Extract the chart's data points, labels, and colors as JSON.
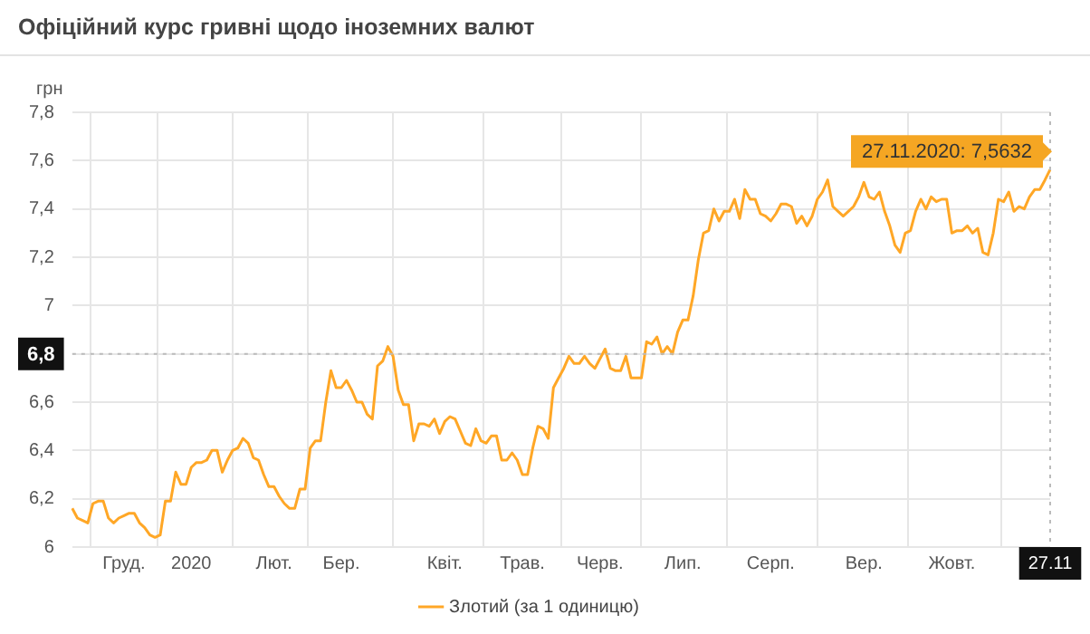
{
  "chart_data": {
    "type": "line",
    "title": "Офіційний курс гривні щодо іноземних валют",
    "ylabel": "грн",
    "categories": [
      null,
      null,
      null,
      null,
      null,
      null,
      null,
      null,
      null,
      null,
      "Груд.",
      null,
      null,
      null,
      null,
      null,
      null,
      null,
      null,
      null,
      null,
      null,
      null,
      "2020",
      null,
      null,
      null,
      null,
      null,
      null,
      null,
      null,
      null,
      null,
      null,
      null,
      null,
      null,
      null,
      "Лют.",
      null,
      null,
      null,
      null,
      null,
      null,
      null,
      null,
      null,
      null,
      null,
      null,
      "Бер.",
      null,
      null,
      null,
      null,
      null,
      null,
      null,
      null,
      null,
      null,
      null,
      null,
      null,
      null,
      null,
      null,
      null,
      null,
      null,
      "Квіт.",
      null,
      null,
      null,
      null,
      null,
      null,
      null,
      null,
      null,
      null,
      null,
      null,
      null,
      null,
      "Трав.",
      null,
      null,
      null,
      null,
      null,
      null,
      null,
      null,
      null,
      null,
      null,
      null,
      null,
      null,
      "Черв.",
      null,
      null,
      null,
      null,
      null,
      null,
      null,
      null,
      null,
      null,
      null,
      null,
      null,
      null,
      null,
      "Лип.",
      null,
      null,
      null,
      null,
      null,
      null,
      null,
      null,
      null,
      null,
      null,
      null,
      null,
      null,
      null,
      null,
      "Серп.",
      null,
      null,
      null,
      null,
      null,
      null,
      null,
      null,
      null,
      null,
      null,
      null,
      null,
      null,
      null,
      null,
      null,
      "Вер.",
      null,
      null,
      null,
      null,
      null,
      null,
      null,
      null,
      null,
      null,
      null,
      null,
      null,
      null,
      null,
      null,
      "Жовт.",
      null,
      null,
      null,
      null,
      null,
      null,
      null,
      null,
      null,
      null,
      null,
      null,
      null,
      null,
      null,
      null,
      null,
      null,
      "27.11"
    ],
    "ylim": [
      6,
      7.8
    ],
    "yticks": [
      6,
      {
        "value": 6.2,
        "label": "6,2"
      },
      {
        "value": 6.4,
        "label": "6,4"
      },
      {
        "value": 6.6,
        "label": "6,6"
      },
      {
        "value": 6.8,
        "label": null
      },
      7,
      {
        "value": 7.2,
        "label": "7,2"
      },
      {
        "value": 7.4,
        "label": "7,4"
      },
      {
        "value": 7.6,
        "label": "7,6"
      },
      {
        "value": 7.8,
        "label": "7,8"
      }
    ],
    "grid": true,
    "legend": "bottom",
    "marker": "none",
    "line_style": "solid",
    "ref_lines": [
      {
        "axis": "y",
        "value": 6.8,
        "label": "6,8",
        "line_style": "dotted"
      },
      {
        "axis": "x",
        "value": "27.11",
        "line_style": "dotted"
      }
    ],
    "annotations": [
      {
        "text": "27.11.2020: 7,5632",
        "x": "27.11",
        "y": 7.5632
      }
    ],
    "series": [
      {
        "name": "Злотий (за 1 одиницю)",
        "color": "#ffa726",
        "values": [
          6.16,
          6.12,
          6.11,
          6.1,
          6.18,
          6.19,
          6.19,
          6.12,
          6.1,
          6.12,
          6.13,
          6.14,
          6.14,
          6.1,
          6.08,
          6.05,
          6.04,
          6.05,
          6.19,
          6.19,
          6.31,
          6.26,
          6.26,
          6.33,
          6.35,
          6.35,
          6.36,
          6.4,
          6.4,
          6.31,
          6.36,
          6.4,
          6.41,
          6.45,
          6.43,
          6.37,
          6.36,
          6.3,
          6.25,
          6.25,
          6.21,
          6.18,
          6.16,
          6.16,
          6.24,
          6.24,
          6.41,
          6.44,
          6.44,
          6.6,
          6.73,
          6.66,
          6.66,
          6.69,
          6.65,
          6.6,
          6.6,
          6.55,
          6.53,
          6.75,
          6.77,
          6.83,
          6.79,
          6.65,
          6.59,
          6.59,
          6.44,
          6.51,
          6.51,
          6.5,
          6.53,
          6.47,
          6.52,
          6.54,
          6.53,
          6.48,
          6.43,
          6.42,
          6.49,
          6.44,
          6.43,
          6.46,
          6.46,
          6.36,
          6.36,
          6.39,
          6.36,
          6.3,
          6.3,
          6.41,
          6.5,
          6.49,
          6.45,
          6.66,
          6.7,
          6.74,
          6.79,
          6.76,
          6.76,
          6.79,
          6.76,
          6.74,
          6.78,
          6.82,
          6.74,
          6.73,
          6.73,
          6.79,
          6.7,
          6.7,
          6.7,
          6.85,
          6.84,
          6.87,
          6.8,
          6.83,
          6.8,
          6.89,
          6.94,
          6.94,
          7.04,
          7.19,
          7.3,
          7.31,
          7.4,
          7.35,
          7.39,
          7.39,
          7.44,
          7.36,
          7.48,
          7.44,
          7.44,
          7.38,
          7.37,
          7.35,
          7.38,
          7.42,
          7.42,
          7.41,
          7.34,
          7.37,
          7.33,
          7.37,
          7.44,
          7.47,
          7.52,
          7.41,
          7.39,
          7.37,
          7.39,
          7.41,
          7.45,
          7.51,
          7.45,
          7.44,
          7.47,
          7.39,
          7.33,
          7.25,
          7.22,
          7.3,
          7.31,
          7.39,
          7.44,
          7.4,
          7.45,
          7.43,
          7.44,
          7.44,
          7.3,
          7.31,
          7.31,
          7.33,
          7.3,
          7.32,
          7.22,
          7.21,
          7.3,
          7.44,
          7.43,
          7.47,
          7.39,
          7.41,
          7.4,
          7.45,
          7.48,
          7.48,
          7.52,
          7.5632
        ]
      }
    ]
  }
}
